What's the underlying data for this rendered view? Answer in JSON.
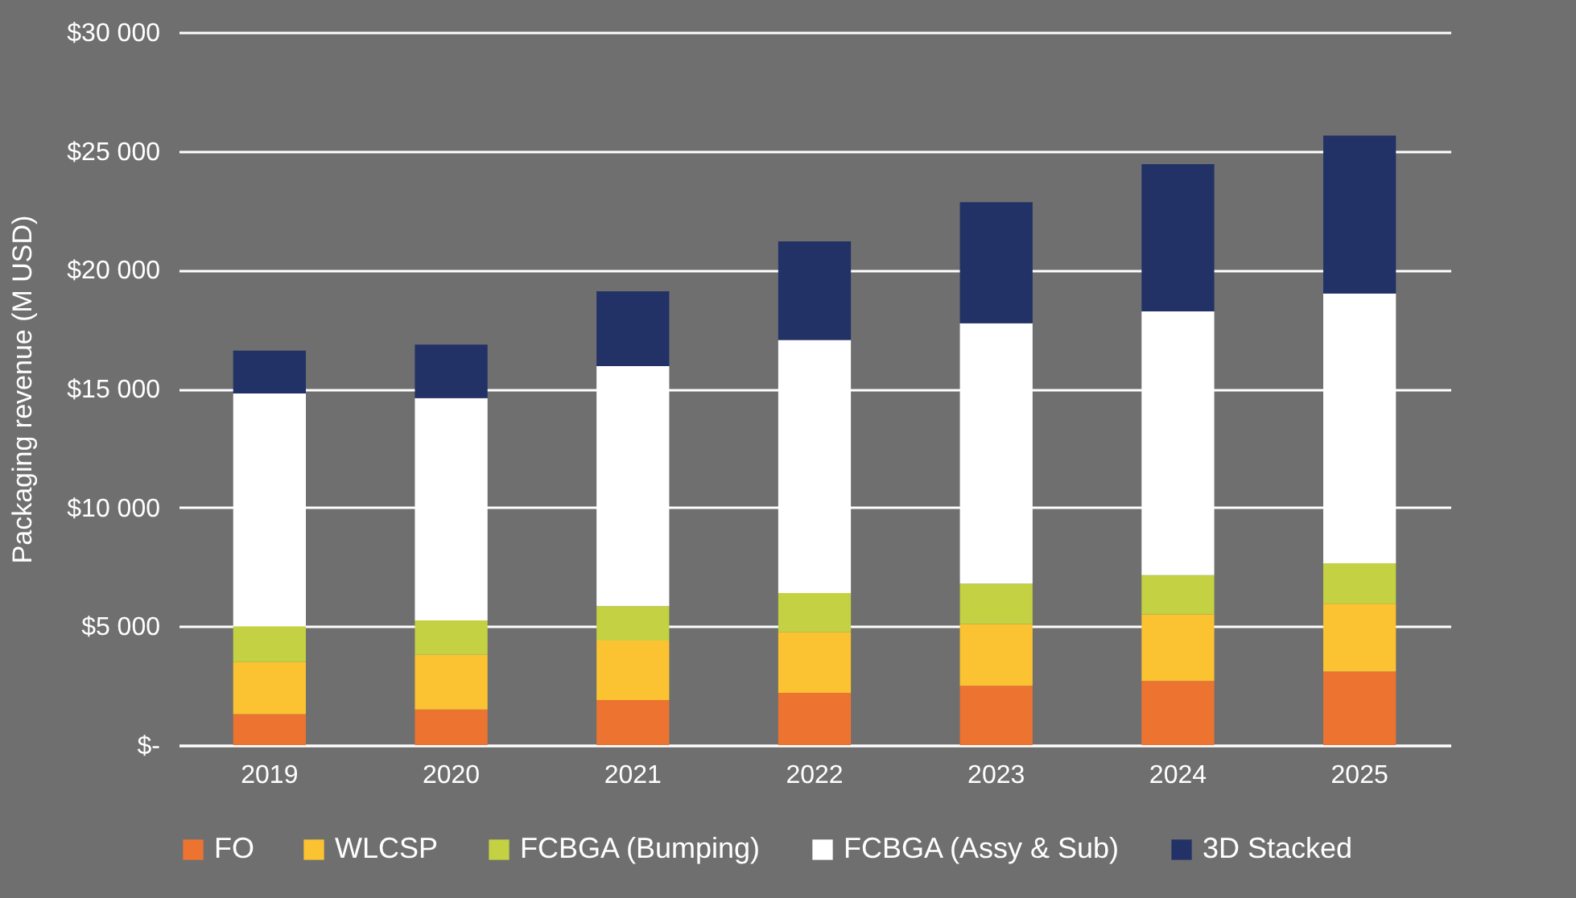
{
  "chart_data": {
    "type": "bar",
    "stacked": true,
    "ylabel": "Packaging revenue (M USD)",
    "categories": [
      "2019",
      "2020",
      "2021",
      "2022",
      "2023",
      "2024",
      "2025"
    ],
    "series": [
      {
        "name": "FO",
        "color": "#ed7330",
        "values": [
          1300,
          1500,
          1900,
          2200,
          2500,
          2700,
          3100
        ]
      },
      {
        "name": "WLCSP",
        "color": "#fbc332",
        "values": [
          2200,
          2300,
          2500,
          2550,
          2600,
          2800,
          2850
        ]
      },
      {
        "name": "FCBGA (Bumping)",
        "color": "#c3d143",
        "values": [
          1500,
          1450,
          1450,
          1650,
          1700,
          1650,
          1700
        ]
      },
      {
        "name": "FCBGA (Assy & Sub)",
        "color": "#ffffff",
        "values": [
          9800,
          9350,
          10100,
          10650,
          10950,
          11100,
          11350
        ]
      },
      {
        "name": "3D Stacked",
        "color": "#223266",
        "values": [
          1800,
          2250,
          3150,
          4150,
          5100,
          6200,
          6650
        ]
      }
    ],
    "ylim": [
      0,
      30000
    ],
    "yticks": [
      {
        "value": 0,
        "label": "$-"
      },
      {
        "value": 5000,
        "label": "$5 000"
      },
      {
        "value": 10000,
        "label": "$10 000"
      },
      {
        "value": 15000,
        "label": "$15 000"
      },
      {
        "value": 20000,
        "label": "$20 000"
      },
      {
        "value": 25000,
        "label": "$25 000"
      },
      {
        "value": 30000,
        "label": "$30 000"
      }
    ],
    "grid": "y",
    "legend": "bottom"
  }
}
